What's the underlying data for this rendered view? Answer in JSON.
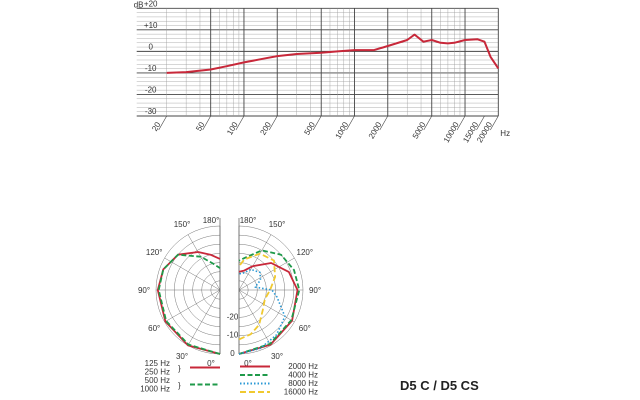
{
  "chart_data": [
    {
      "type": "line",
      "xscale": "log",
      "xlabel": "Hz",
      "ylabel": "dB",
      "xlim": [
        20,
        20000
      ],
      "ylim": [
        -30,
        20
      ],
      "grid": true,
      "x_ticks": [
        "20",
        "50",
        "100",
        "200",
        "500",
        "1000",
        "2000",
        "5000",
        "10000",
        "15000",
        "20000"
      ],
      "x_tick_values": [
        20,
        50,
        100,
        200,
        500,
        1000,
        2000,
        5000,
        10000,
        15000,
        20000
      ],
      "y_ticks": [
        "+20",
        "+10",
        "0",
        "-10",
        "-20",
        "-30"
      ],
      "y_tick_values": [
        20,
        10,
        0,
        -10,
        -20,
        -30
      ],
      "color": "#c8283a",
      "x": [
        20,
        30,
        50,
        70,
        100,
        150,
        200,
        300,
        500,
        700,
        1000,
        1500,
        2000,
        3000,
        3500,
        4200,
        5000,
        6000,
        7000,
        8000,
        10000,
        13000,
        15000,
        17000,
        20000
      ],
      "y": [
        -10,
        -9.6,
        -8.4,
        -6.9,
        -5.1,
        -3.4,
        -2.2,
        -1.2,
        -0.6,
        0,
        0.6,
        0.6,
        2.5,
        5.3,
        7.8,
        4.5,
        5.3,
        4.0,
        3.7,
        4.0,
        5.3,
        5.6,
        4.5,
        -2.5,
        -7.9
      ]
    },
    {
      "type": "polar",
      "angle_labels": [
        "0°",
        "30°",
        "60°",
        "90°",
        "120°",
        "150°",
        "180°"
      ],
      "radial_labels": [
        "0",
        "-10",
        "-20"
      ],
      "series": [
        {
          "name": "125 Hz / 250 Hz",
          "side": "left",
          "color": "#c8283a",
          "style": "solid",
          "points": [
            [
              0,
              0
            ],
            [
              30,
              0
            ],
            [
              60,
              -0.5
            ],
            [
              90,
              -1
            ],
            [
              110,
              -2
            ],
            [
              130,
              -5
            ],
            [
              150,
              -11
            ],
            [
              165,
              -15
            ],
            [
              180,
              -18
            ]
          ]
        },
        {
          "name": "500 Hz / 1000 Hz",
          "side": "left",
          "color": "#1f9a4a",
          "style": "dashed",
          "points": [
            [
              0,
              0
            ],
            [
              30,
              -0.5
            ],
            [
              60,
              -1
            ],
            [
              90,
              -1.5
            ],
            [
              110,
              -2
            ],
            [
              130,
              -5
            ],
            [
              150,
              -14
            ],
            [
              165,
              -20
            ],
            [
              180,
              -23
            ]
          ]
        },
        {
          "name": "2000 Hz",
          "side": "right",
          "color": "#c8283a",
          "style": "solid",
          "points": [
            [
              0,
              0
            ],
            [
              30,
              -0.5
            ],
            [
              60,
              -1.5
            ],
            [
              90,
              -3
            ],
            [
              110,
              -6
            ],
            [
              130,
              -12
            ],
            [
              150,
              -20
            ],
            [
              165,
              -24
            ],
            [
              180,
              -25
            ]
          ]
        },
        {
          "name": "4000 Hz",
          "side": "right",
          "color": "#1f9a4a",
          "style": "dashed",
          "points": [
            [
              0,
              0
            ],
            [
              30,
              -1
            ],
            [
              60,
              -2
            ],
            [
              90,
              -2
            ],
            [
              110,
              -3
            ],
            [
              130,
              -5
            ],
            [
              150,
              -10
            ],
            [
              165,
              -16
            ],
            [
              180,
              -19
            ]
          ]
        },
        {
          "name": "8000 Hz",
          "side": "right",
          "color": "#2b9ad6",
          "style": "dotted",
          "points": [
            [
              0,
              0
            ],
            [
              20,
              -1
            ],
            [
              40,
              -3
            ],
            [
              60,
              -6
            ],
            [
              80,
              -14
            ],
            [
              90,
              -17
            ],
            [
              100,
              -26
            ],
            [
              115,
              -22
            ],
            [
              130,
              -20
            ],
            [
              150,
              -22
            ],
            [
              170,
              -26
            ],
            [
              180,
              -26
            ]
          ]
        },
        {
          "name": "16000 Hz",
          "side": "right",
          "color": "#f0c930",
          "style": "longdash",
          "points": [
            [
              0,
              -8
            ],
            [
              15,
              -10
            ],
            [
              30,
              -13
            ],
            [
              50,
              -18
            ],
            [
              70,
              -20
            ],
            [
              90,
              -18
            ],
            [
              110,
              -14
            ],
            [
              130,
              -10
            ],
            [
              150,
              -12
            ],
            [
              170,
              -18
            ],
            [
              180,
              -22
            ]
          ]
        }
      ],
      "legend": {
        "left": [
          {
            "labels": [
              "125 Hz",
              "250 Hz"
            ],
            "color": "#c8283a",
            "style": "solid"
          },
          {
            "labels": [
              "500 Hz",
              "1000 Hz"
            ],
            "color": "#1f9a4a",
            "style": "dashed"
          }
        ],
        "right": [
          {
            "label": "2000 Hz",
            "color": "#c8283a",
            "style": "solid"
          },
          {
            "label": "4000 Hz",
            "color": "#1f9a4a",
            "style": "dashed"
          },
          {
            "label": "8000 Hz",
            "color": "#2b9ad6",
            "style": "dotted"
          },
          {
            "label": "16000 Hz",
            "color": "#f0c930",
            "style": "longdash"
          }
        ]
      }
    }
  ],
  "product_title": "D5 C / D5 CS"
}
